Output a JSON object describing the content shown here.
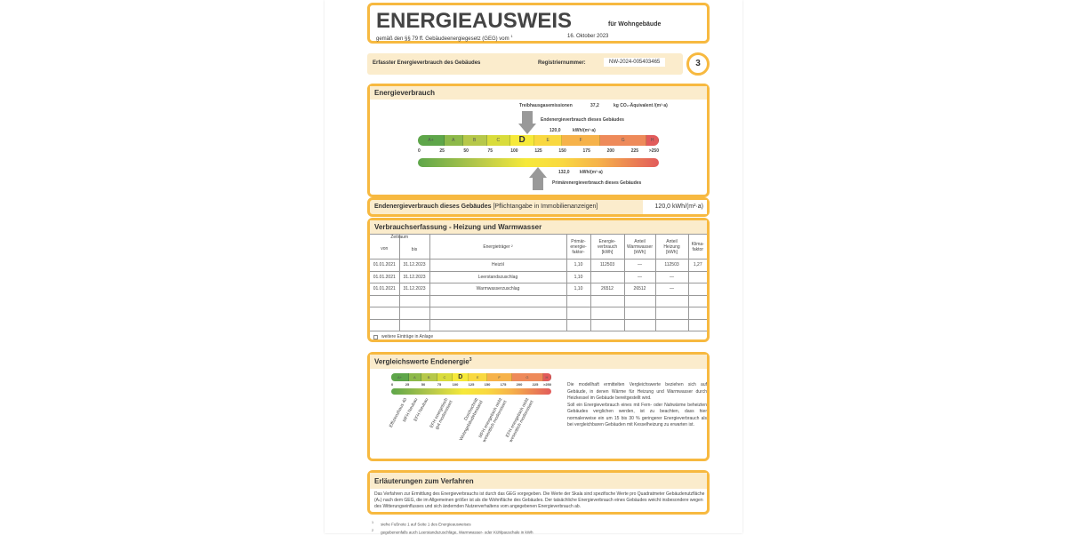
{
  "header": {
    "title": "ENERGIEAUSWEIS",
    "subtitle": "für Wohngebäude",
    "law": "gemäß den §§ 79 ff. Gebäudeenergiegesetz (GEG) vom",
    "law_footnote": "1",
    "date": "16. Oktober 2023"
  },
  "registry": {
    "label": "Erfasster Energieverbrauch des Gebäudes",
    "number_label": "Registriernummer:",
    "number": "NW-2024-005403465",
    "page": "3"
  },
  "energy": {
    "title": "Energieverbrauch",
    "ghg_label": "Treibhausgasemissionen",
    "ghg_value": "37,2",
    "ghg_unit": "kg CO₂-Äquivalent /(m²·a)",
    "end_label": "Endenergieverbrauch dieses Gebäudes",
    "end_value": "120,0",
    "end_unit": "kWh/(m²·a)",
    "primary_value": "132,0",
    "primary_unit": "kWh/(m²·a)",
    "primary_label": "Primärenergieverbrauch dieses Gebäudes",
    "classes": [
      "A+",
      "A",
      "B",
      "C",
      "D",
      "E",
      "F",
      "G",
      "H"
    ],
    "active_class": "D",
    "ticks": [
      "0",
      "25",
      "50",
      "75",
      "100",
      "125",
      "150",
      "175",
      "200",
      "225",
      ">250"
    ]
  },
  "summary": {
    "label": "Endenergieverbrauch dieses Gebäudes",
    "note": "[Pflichtangabe in Immobilienanzeigen]",
    "value": "120,0 kWh/(m²·a)"
  },
  "consumption": {
    "title": "Verbrauchserfassung - Heizung und Warmwasser",
    "headers": {
      "period": "Zeitraum",
      "from": "von",
      "to": "bis",
      "carrier": "Energieträger ²",
      "pef": "Primär-\nenergie-\nfaktor-",
      "consumption": "Energie-\nverbrauch\n[kWh]",
      "ww": "Anteil\nWarmwasser\n[kWh]",
      "heat": "Anteil\nHeizung\n[kWh]",
      "climate": "Klima-\nfaktor"
    },
    "rows": [
      {
        "from": "01.01.2021",
        "to": "31.12.2023",
        "carrier": "Heizöl",
        "pef": "1,10",
        "consumption": "112503",
        "ww": "—",
        "heat": "112503",
        "climate": "1,27"
      },
      {
        "from": "01.01.2021",
        "to": "31.12.2023",
        "carrier": "Leerstandszuschlag",
        "pef": "1,10",
        "consumption": "",
        "ww": "—",
        "heat": "—",
        "climate": ""
      },
      {
        "from": "01.01.2021",
        "to": "31.12.2023",
        "carrier": "Warmwasserzuschlag",
        "pef": "1,10",
        "consumption": "26512",
        "ww": "26512",
        "heat": "—",
        "climate": ""
      }
    ],
    "more_entries": "weitere Einträge in Anlage"
  },
  "comparison": {
    "title": "Vergleichswerte Endenergie",
    "footnote": "3",
    "labels": [
      "Effizienzhaus 40",
      "MFH Neubau",
      "EFH Neubau",
      "EFH energetisch\ngut modernisiert",
      "Durchschnitt\nWohngebäudebestand",
      "MFH energetisch nicht\nwesentlich modernisiert",
      "EFH energetisch nicht\nwesentlich modernisiert"
    ],
    "text1": "Die modellhaft ermittelten Vergleichswerte beziehen sich auf Gebäude, in denen Wärme für Heizung und Warmwasser durch Heizkessel im Gebäude bereitgestellt wird.",
    "text2": "Soll ein Energieverbrauch eines mit Fern- oder Nahwärme beheizten Gebäudes verglichen werden, ist zu beachten, dass hier normalerweise ein um 15 bis 30 % geringerer Energieverbrauch als bei vergleichbaren Gebäuden mit Kesselheizung zu erwarten ist."
  },
  "explanation": {
    "title": "Erläuterungen zum Verfahren",
    "text": "Das Verfahren zur Ermittlung des Energieverbrauchs ist durch das GEG vorgegeben. Die Werte der Skala sind spezifische Werte pro Quadratmeter Gebäudenutzfläche (Aₙ) nach dem GEG, die im Allgemeinen größer ist als die Wohnfläche des Gebäudes. Der tatsächliche Energieverbrauch eines Gebäudes weicht insbesondere wegen des Witterungseinflusses und sich ändernden Nutzerverhaltens vom angegebenen Energieverbrauch ab."
  },
  "footnotes": [
    {
      "n": "1",
      "text": "siehe Fußnote 1 auf Seite 1 des Energieausweises"
    },
    {
      "n": "2",
      "text": "gegebenenfalls auch Leerstandszuschläge, Warmwasser- oder Kühlpauschale in kWh"
    }
  ],
  "colors": {
    "accent": "#f7b940",
    "band": "#fbeccc",
    "scale": [
      "#5ea64a",
      "#8db94a",
      "#b6c84a",
      "#d9dc3c",
      "#f6e93a",
      "#f9d840",
      "#f6b24a",
      "#ee8a5a",
      "#e25b5b"
    ]
  }
}
